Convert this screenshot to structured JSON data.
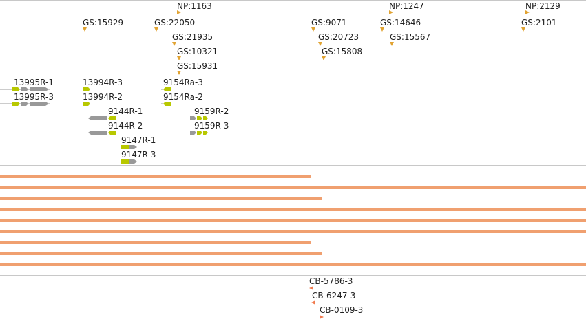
{
  "colors": {
    "marker": "#e1a332",
    "bar": "#f0a070",
    "exon_green": "#b8c800",
    "exon_grey": "#999999",
    "cb_marker": "#f07a4e",
    "divider": "#c8c8c8"
  },
  "np_track": {
    "labels": [
      "NP:1163",
      "NP:1247",
      "NP:2129"
    ]
  },
  "gs_track": {
    "labels": [
      "GS:15929",
      "GS:22050",
      "GS:21935",
      "GS:10321",
      "GS:15931",
      "GS:9071",
      "GS:20723",
      "GS:15808",
      "GS:14646",
      "GS:15567",
      "GS:2101"
    ]
  },
  "transcript_track": {
    "labels": [
      "13995R-1",
      "13995R-3",
      "13994R-3",
      "13994R-2",
      "9154Ra-3",
      "9154Ra-2",
      "9144R-1",
      "9144R-2",
      "9159R-2",
      "9159R-3",
      "9147R-1",
      "9147R-3"
    ]
  },
  "bar_track": {
    "count": 9
  },
  "cb_track": {
    "labels": [
      "CB-5786-3",
      "CB-6247-3",
      "CB-0109-3"
    ]
  }
}
